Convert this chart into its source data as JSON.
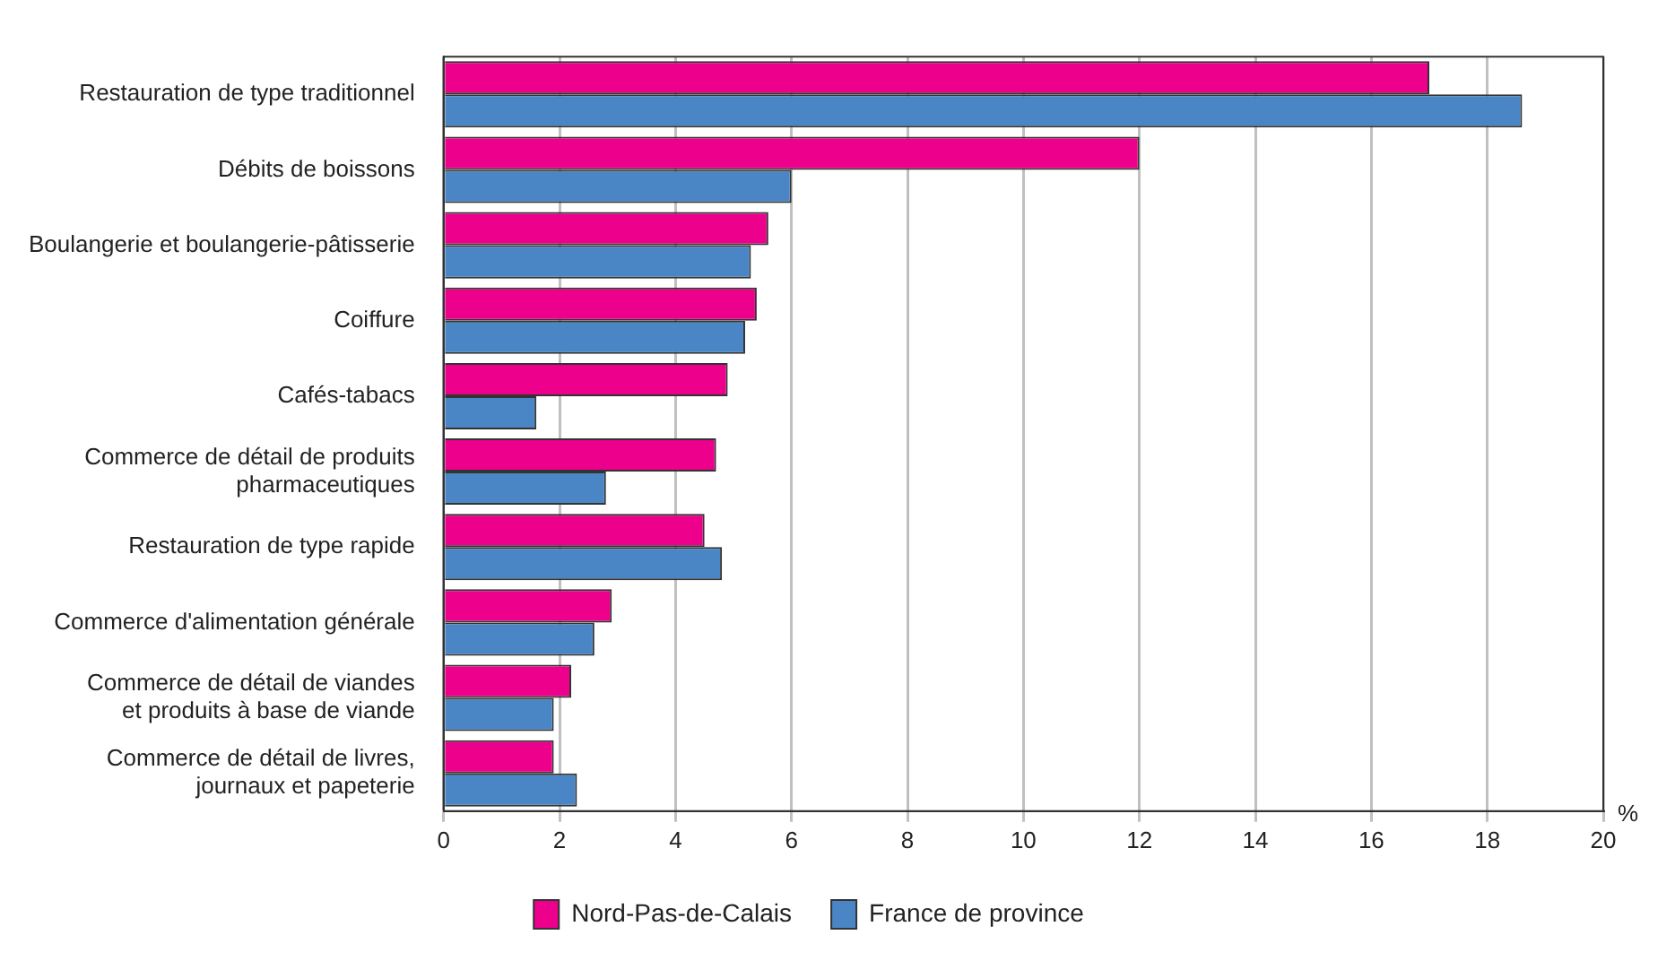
{
  "chart_data": {
    "type": "bar",
    "orientation": "horizontal",
    "xlabel": "%",
    "categories": [
      "Restauration de type traditionnel",
      "Débits de boissons",
      "Boulangerie et boulangerie-pâtisserie",
      "Coiffure",
      "Cafés-tabacs",
      "Commerce de détail de produits\npharmaceutiques",
      "Restauration de type rapide",
      "Commerce d'alimentation générale",
      "Commerce de détail de viandes\net produits à base de viande",
      "Commerce de détail de livres,\njournaux et papeterie"
    ],
    "series": [
      {
        "name": "Nord-Pas-de-Calais",
        "color": "#ec008c",
        "values": [
          17.0,
          12.0,
          5.6,
          5.4,
          4.9,
          4.7,
          4.5,
          2.9,
          2.2,
          1.9
        ]
      },
      {
        "name": "France de province",
        "color": "#4a86c5",
        "values": [
          18.6,
          6.0,
          5.3,
          5.2,
          1.6,
          2.8,
          4.8,
          2.6,
          1.9,
          2.3
        ]
      }
    ],
    "xlim": [
      0,
      20
    ],
    "xticks": [
      0,
      2,
      4,
      6,
      8,
      10,
      12,
      14,
      16,
      18,
      20
    ],
    "grid": "x",
    "legend": "bottom"
  }
}
